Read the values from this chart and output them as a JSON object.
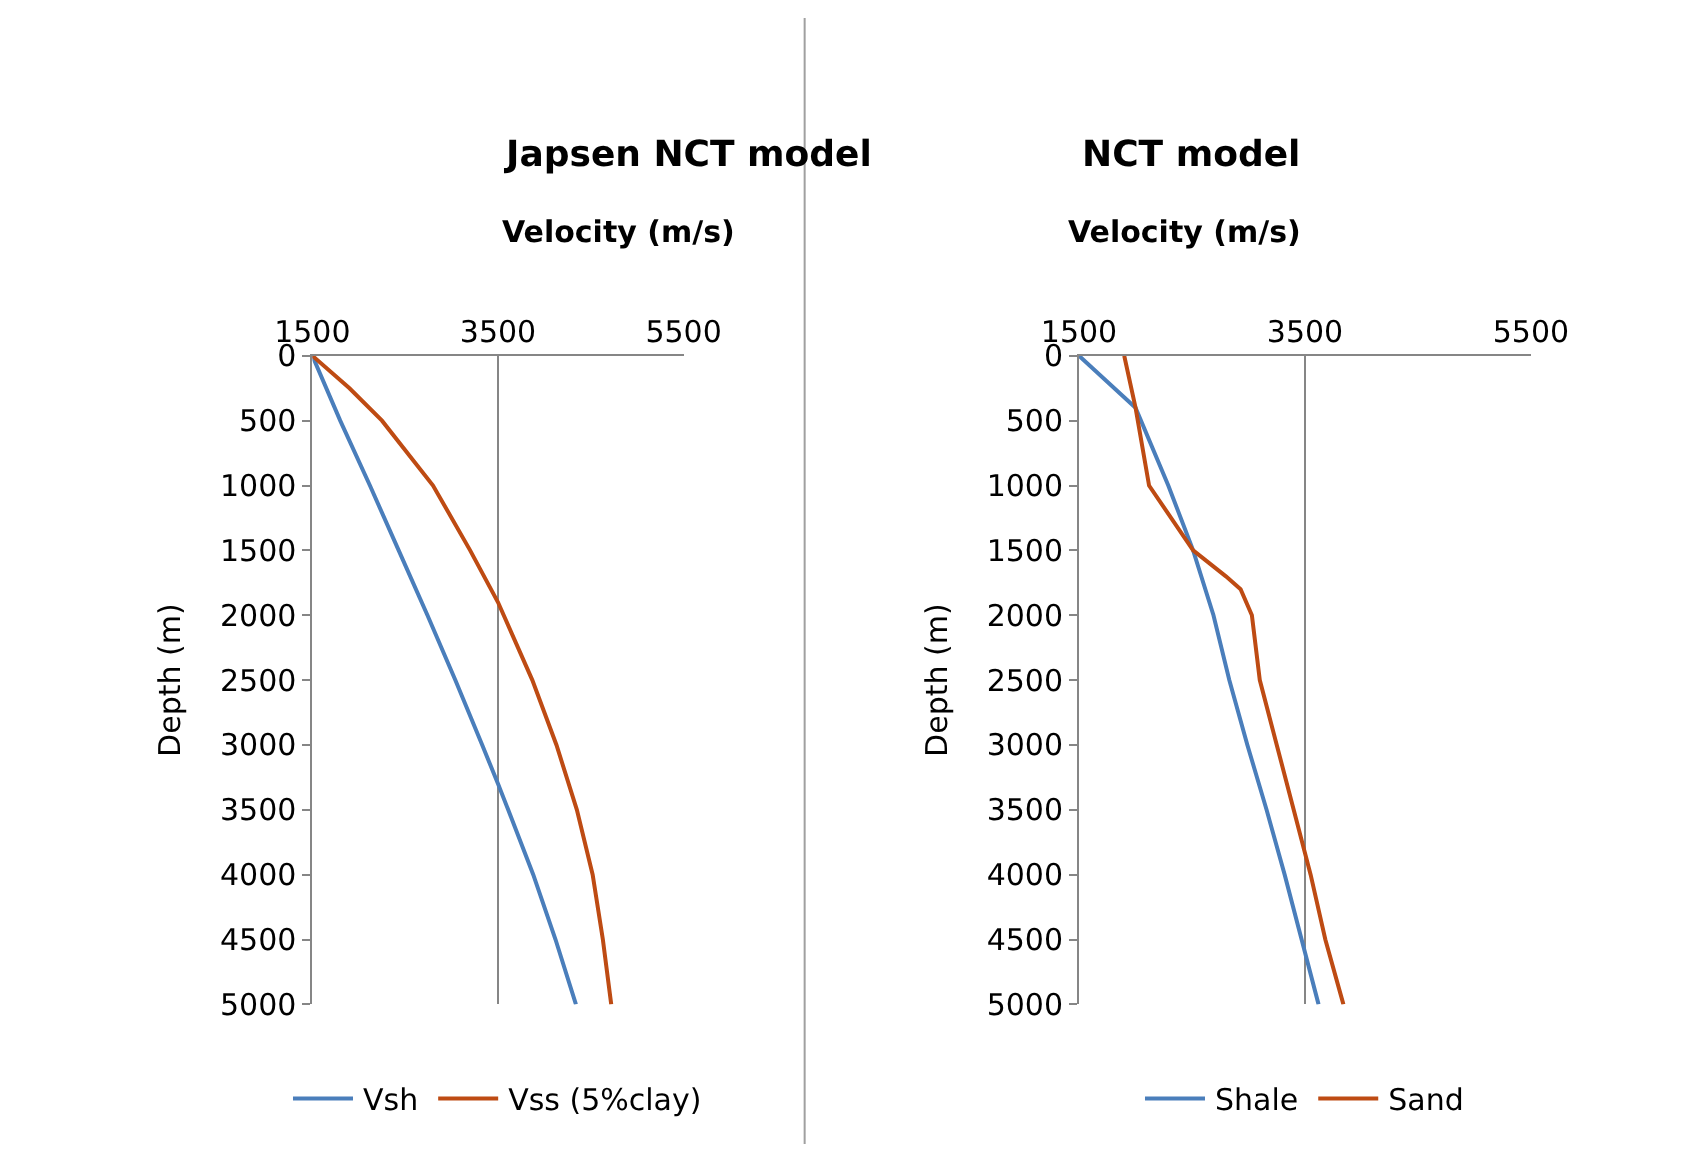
{
  "chart_data": [
    {
      "type": "line",
      "title": "Japsen NCT model",
      "xlabel": "Velocity (m/s)",
      "ylabel": "Depth (m)",
      "xlim": [
        1500,
        5500
      ],
      "xticks": [
        1500,
        3500,
        5500
      ],
      "ylim": [
        5000,
        0
      ],
      "yticks": [
        0,
        500,
        1000,
        1500,
        2000,
        2500,
        3000,
        3500,
        4000,
        4500,
        5000
      ],
      "grid": "x",
      "legend": "bottom",
      "marker": "none",
      "line_style": "solid",
      "series": [
        {
          "name": "Vsh",
          "color": "#4a7ebb",
          "x": [
            1500,
            1800,
            2120,
            2430,
            2740,
            3040,
            3330,
            3500,
            3610,
            3880,
            4120,
            4340
          ],
          "values": [
            0,
            500,
            1000,
            1500,
            2000,
            2500,
            3000,
            3300,
            3500,
            4000,
            4500,
            5000
          ]
        },
        {
          "name": "Vss (5%clay)",
          "color": "#be4b13",
          "x": [
            1500,
            1900,
            2250,
            2800,
            3200,
            3500,
            3870,
            4130,
            4350,
            4520,
            4630,
            4720
          ],
          "values": [
            0,
            250,
            500,
            1000,
            1500,
            1900,
            2500,
            3000,
            3500,
            4000,
            4500,
            5000
          ]
        }
      ]
    },
    {
      "type": "line",
      "title": "NCT model",
      "xlabel": "Velocity (m/s)",
      "ylabel": "Depth (m)",
      "xlim": [
        1500,
        5500
      ],
      "xticks": [
        1500,
        3500,
        5500
      ],
      "ylim": [
        5000,
        0
      ],
      "yticks": [
        0,
        500,
        1000,
        1500,
        2000,
        2500,
        3000,
        3500,
        4000,
        4500,
        5000
      ],
      "grid": "x",
      "legend": "bottom",
      "marker": "none",
      "line_style": "solid",
      "series": [
        {
          "name": "Shale",
          "color": "#4a7ebb",
          "x": [
            1500,
            2000,
            2290,
            2510,
            2690,
            2830,
            2990,
            3160,
            3320,
            3470,
            3620
          ],
          "values": [
            0,
            400,
            1000,
            1500,
            2000,
            2500,
            3000,
            3500,
            4000,
            4500,
            5000
          ]
        },
        {
          "name": "Sand",
          "color": "#be4b13",
          "x": [
            1900,
            2000,
            2120,
            2510,
            2800,
            2930,
            3030,
            3100,
            3250,
            3400,
            3550,
            3680,
            3840
          ],
          "values": [
            0,
            400,
            1000,
            1500,
            1700,
            1800,
            2000,
            2500,
            3000,
            3500,
            4000,
            4500,
            5000
          ]
        }
      ]
    }
  ]
}
